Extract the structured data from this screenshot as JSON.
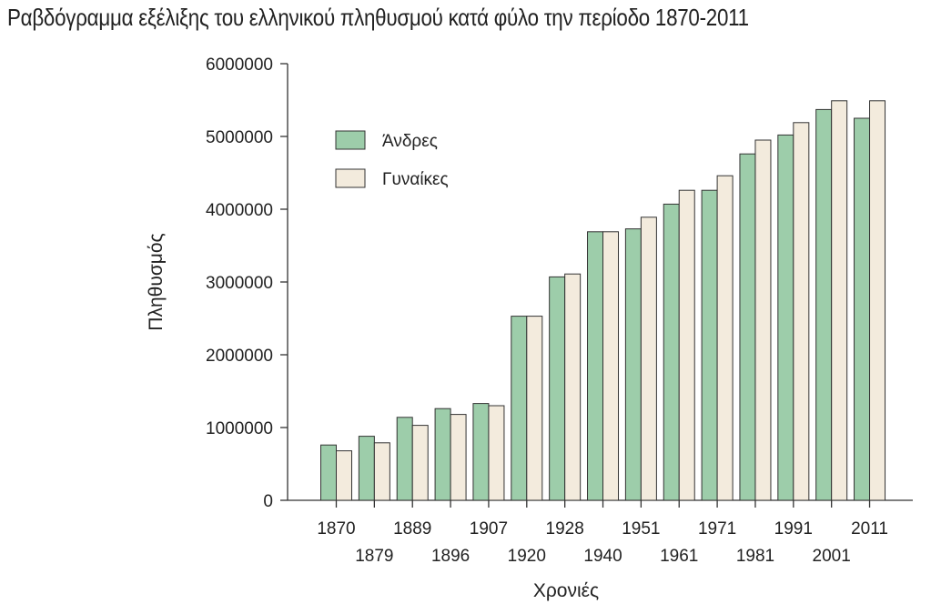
{
  "chart_data": {
    "type": "bar",
    "title": "Ραβδόγραμμα εξέλιξης του ελληνικού πληθυσμού κατά φύλο την περίοδο 1870-2011",
    "xlabel": "Χρονιές",
    "ylabel": "Πληθυσμός",
    "ylim": [
      0,
      6000000
    ],
    "yticks": [
      0,
      1000000,
      2000000,
      3000000,
      4000000,
      5000000,
      6000000
    ],
    "ytick_labels": [
      "0",
      "1000000",
      "2000000",
      "3000000",
      "4000000",
      "5000000",
      "6000000"
    ],
    "categories": [
      "1870",
      "1879",
      "1889",
      "1896",
      "1907",
      "1920",
      "1928",
      "1940",
      "1951",
      "1961",
      "1971",
      "1981",
      "1991",
      "2001",
      "2011"
    ],
    "series": [
      {
        "name": "Άνδρες",
        "color": "#9dcdaa",
        "values": [
          760000,
          880000,
          1140000,
          1260000,
          1330000,
          2530000,
          3070000,
          3690000,
          3730000,
          4070000,
          4260000,
          4760000,
          5020000,
          5370000,
          5250000
        ]
      },
      {
        "name": "Γυναίκες",
        "color": "#f3ebdd",
        "values": [
          680000,
          790000,
          1030000,
          1180000,
          1300000,
          2530000,
          3110000,
          3690000,
          3890000,
          4260000,
          4460000,
          4950000,
          5190000,
          5490000,
          5490000
        ]
      }
    ],
    "grid": false,
    "legend": "top-left"
  }
}
